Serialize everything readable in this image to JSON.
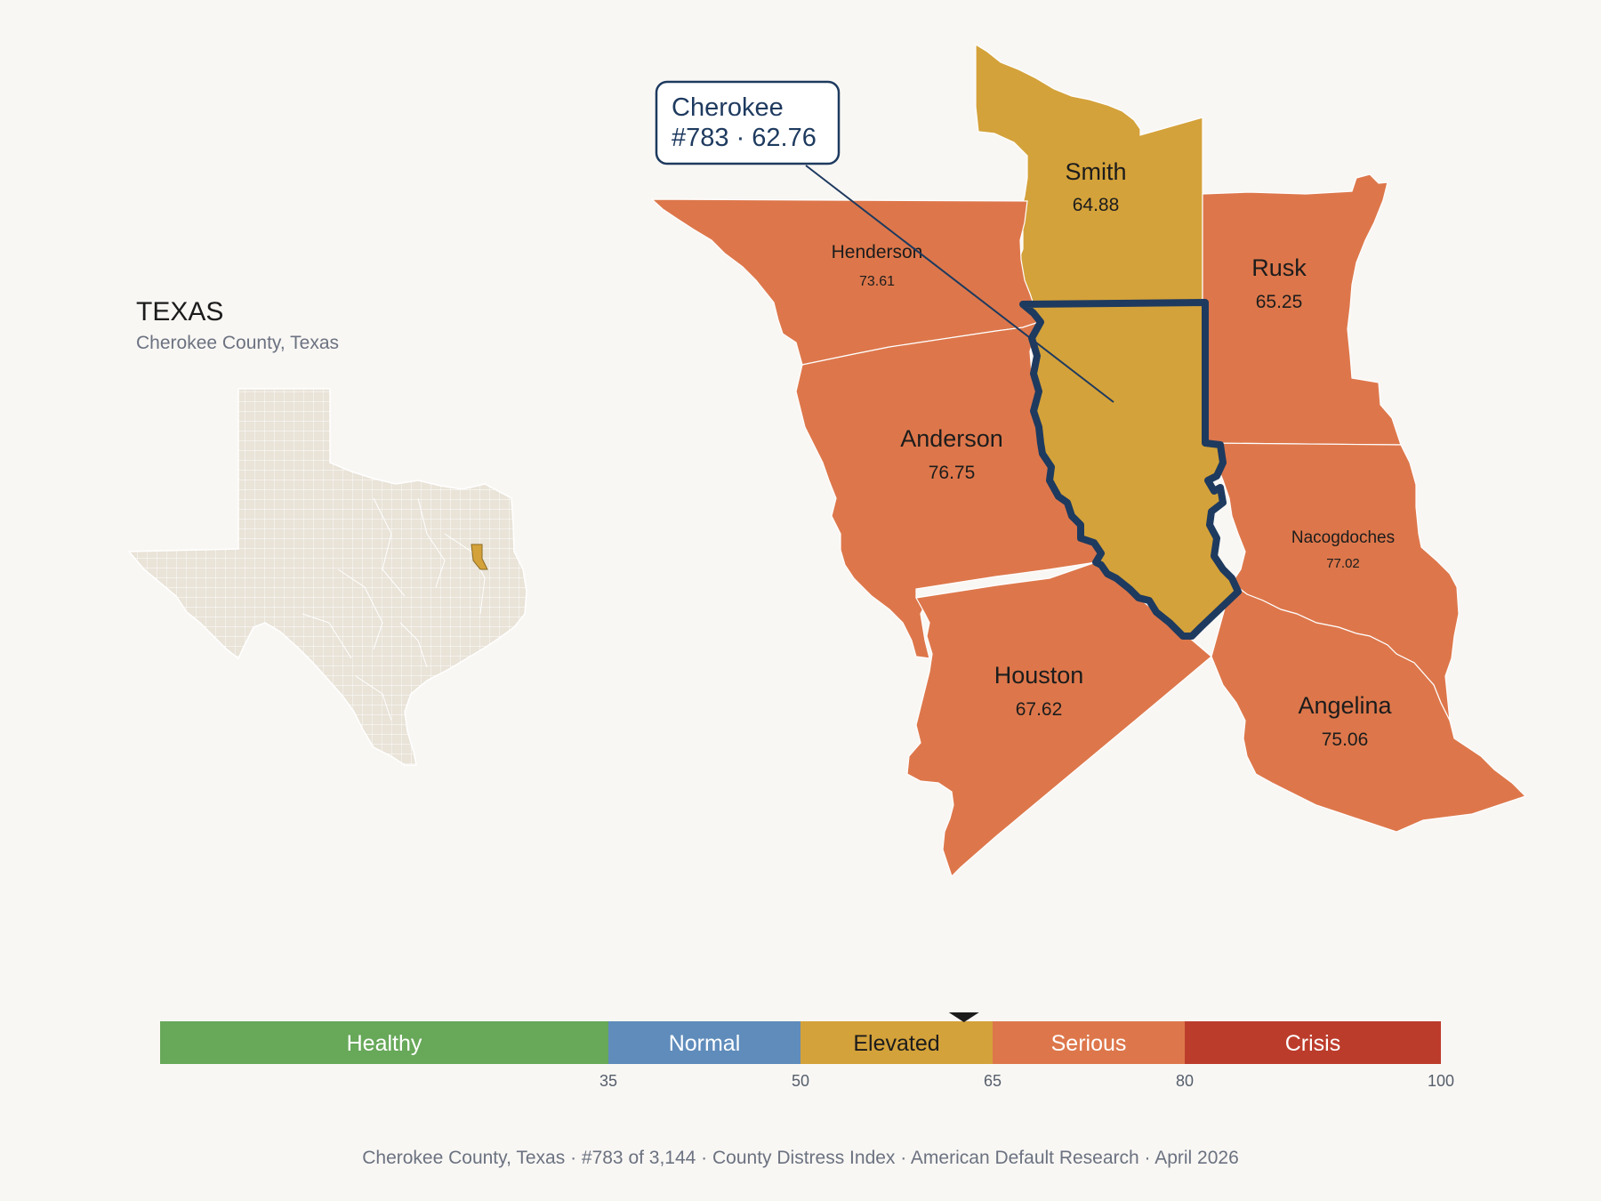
{
  "inset": {
    "state": "TEXAS",
    "subtitle": "Cherokee County, Texas"
  },
  "focus": {
    "name": "Cherokee",
    "rank_value": "#783 · 62.76"
  },
  "counties": [
    {
      "id": "smith",
      "name": "Smith",
      "value": "64.88",
      "color": "#d4a23a"
    },
    {
      "id": "henderson",
      "name": "Henderson",
      "value": "73.61",
      "color": "#dd774b"
    },
    {
      "id": "rusk",
      "name": "Rusk",
      "value": "65.25",
      "color": "#dd774b"
    },
    {
      "id": "anderson",
      "name": "Anderson",
      "value": "76.75",
      "color": "#dd774b"
    },
    {
      "id": "nacogdoches",
      "name": "Nacogdoches",
      "value": "77.02",
      "color": "#dd774b"
    },
    {
      "id": "houston",
      "name": "Houston",
      "value": "67.62",
      "color": "#dd774b"
    },
    {
      "id": "angelina",
      "name": "Angelina",
      "value": "75.06",
      "color": "#dd774b"
    }
  ],
  "scale": {
    "marker_value": 62.76,
    "min": 0,
    "max": 100,
    "bands": [
      {
        "label": "Healthy",
        "from": 0,
        "to": 35,
        "color": "#67a859"
      },
      {
        "label": "Normal",
        "from": 35,
        "to": 50,
        "color": "#5f8cbb"
      },
      {
        "label": "Elevated",
        "from": 50,
        "to": 65,
        "color": "#d4a23a"
      },
      {
        "label": "Serious",
        "from": 65,
        "to": 80,
        "color": "#dd774b"
      },
      {
        "label": "Crisis",
        "from": 80,
        "to": 100,
        "color": "#bc3c2c"
      }
    ],
    "ticks": [
      "35",
      "50",
      "65",
      "80",
      "100"
    ]
  },
  "colors": {
    "background": "#f9f7f4",
    "focus_outline": "#1e3a5f",
    "inset_land": "#e9e3d8",
    "inset_highlight": "#d4a23a"
  },
  "footer": "Cherokee County, Texas  ·  #783 of 3,144  ·  County Distress Index  ·  American Default Research  ·  April 2026"
}
